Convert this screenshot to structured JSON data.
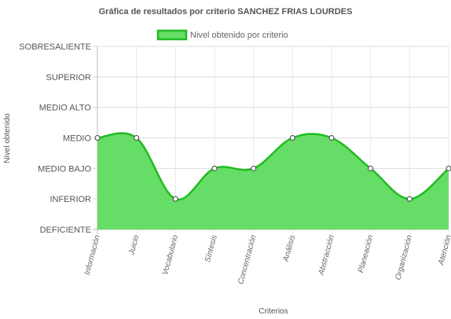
{
  "chart_data": {
    "type": "area",
    "title": "Gráfica de resultados por criterio SANCHEZ FRIAS LOURDES",
    "xlabel": "Criterios",
    "ylabel": "Nivel obtenido",
    "y_levels": [
      "DEFICIENTE",
      "INFERIOR",
      "MEDIO BAJO",
      "MEDIO",
      "MEDIO ALTO",
      "SUPERIOR",
      "SOBRESALIENTE"
    ],
    "ylim": [
      0,
      6
    ],
    "categories": [
      "Información",
      "Juicio",
      "Vocabulario",
      "Síntesis",
      "Concentración",
      "Análisis",
      "Abstracción",
      "Planeación",
      "Organización",
      "Atención"
    ],
    "series": [
      {
        "name": "Nivel obtenido por criterio",
        "values": [
          3,
          3,
          1,
          2,
          2,
          3,
          3,
          2,
          1,
          2
        ]
      }
    ],
    "grid": true,
    "legend_position": "top",
    "colors": {
      "fill": "#66dd66",
      "line": "#22bb22",
      "grid": "#e5e5e5",
      "axis": "#bbbbbb"
    }
  }
}
